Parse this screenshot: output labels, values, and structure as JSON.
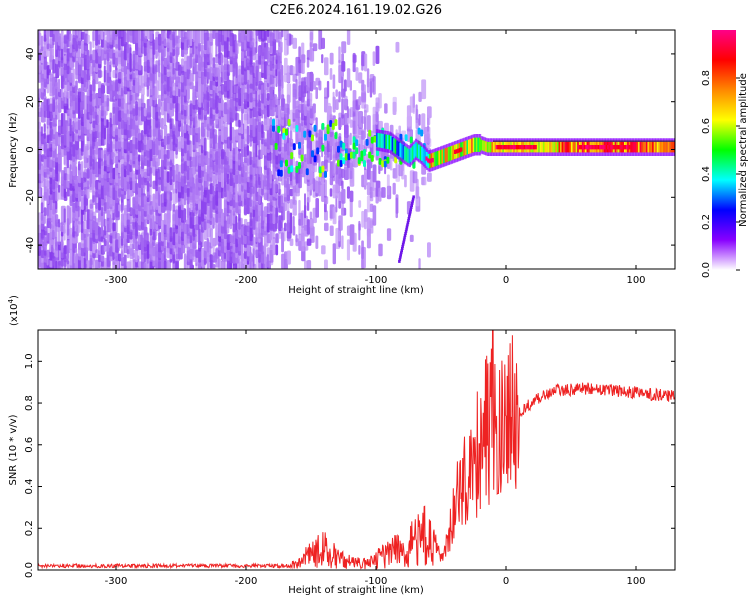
{
  "title": "C2E6.2024.161.19.02.G26",
  "chart_data": [
    {
      "type": "heatmap",
      "xlabel": "Height of straight line (km)",
      "ylabel": "Frequency (Hz)",
      "xlim": [
        -360,
        130
      ],
      "ylim": [
        -50,
        50
      ],
      "xticks": [
        -300,
        -200,
        -100,
        0,
        100
      ],
      "yticks": [
        -40,
        -20,
        0,
        20,
        40
      ],
      "colorbar": {
        "label": "Normalized spectral amplitude",
        "range": [
          0,
          1
        ],
        "ticks": [
          "0.0",
          "0.2",
          "0.4",
          "0.6",
          "0.8"
        ],
        "tick_values": [
          0.0,
          0.2,
          0.4,
          0.6,
          0.8
        ],
        "colors": [
          "#ffffff",
          "#8800ff",
          "#0000ff",
          "#00ffff",
          "#00ff00",
          "#ffff00",
          "#ff8800",
          "#ff0000",
          "#ff0088"
        ]
      },
      "ridge": {
        "x": [
          -100,
          -90,
          -80,
          -75,
          -70,
          -65,
          -60,
          -55,
          -50,
          -45,
          -40,
          -35,
          -30,
          -25,
          -20,
          -15,
          -10,
          -5,
          0,
          20,
          40,
          60,
          80,
          100,
          130
        ],
        "y": [
          4,
          3,
          -1,
          -3,
          0,
          -2,
          -5,
          -4,
          -3,
          -2,
          -1,
          0,
          1,
          2,
          2,
          1,
          1,
          1,
          1,
          1,
          1,
          1,
          1,
          1,
          1
        ]
      },
      "streak": {
        "x": [
          -83,
          -72
        ],
        "y": [
          -47,
          -20
        ]
      }
    },
    {
      "type": "line",
      "xlabel": "Height of straight line (km)",
      "ylabel": "SNR (10 * v/v)",
      "multiplier_label": "(x10",
      "multiplier_exp": "4",
      "multiplier_close": ")",
      "xlim": [
        -360,
        130
      ],
      "ylim": [
        0,
        1.15
      ],
      "xticks": [
        -300,
        -200,
        -100,
        0,
        100
      ],
      "yticks": [
        "0.0",
        "0.2",
        "0.4",
        "0.6",
        "0.8",
        "1.0"
      ],
      "ytick_values": [
        0.0,
        0.2,
        0.4,
        0.6,
        0.8,
        1.0
      ],
      "color": "#ee2222",
      "envelope": {
        "x": [
          -360,
          -200,
          -160,
          -150,
          -140,
          -130,
          -120,
          -110,
          -100,
          -90,
          -80,
          -70,
          -60,
          -50,
          -45,
          -40,
          -35,
          -30,
          -25,
          -20,
          -15,
          -10,
          -5,
          0,
          10,
          20,
          30,
          40,
          60,
          80,
          100,
          130
        ],
        "y": [
          0.02,
          0.02,
          0.025,
          0.08,
          0.1,
          0.06,
          0.04,
          0.03,
          0.05,
          0.08,
          0.1,
          0.14,
          0.18,
          0.07,
          0.12,
          0.3,
          0.4,
          0.45,
          0.5,
          0.6,
          0.7,
          0.68,
          0.65,
          0.72,
          0.76,
          0.8,
          0.84,
          0.86,
          0.87,
          0.86,
          0.85,
          0.83
        ]
      },
      "peak": {
        "x": -10,
        "y": 1.15
      }
    }
  ]
}
